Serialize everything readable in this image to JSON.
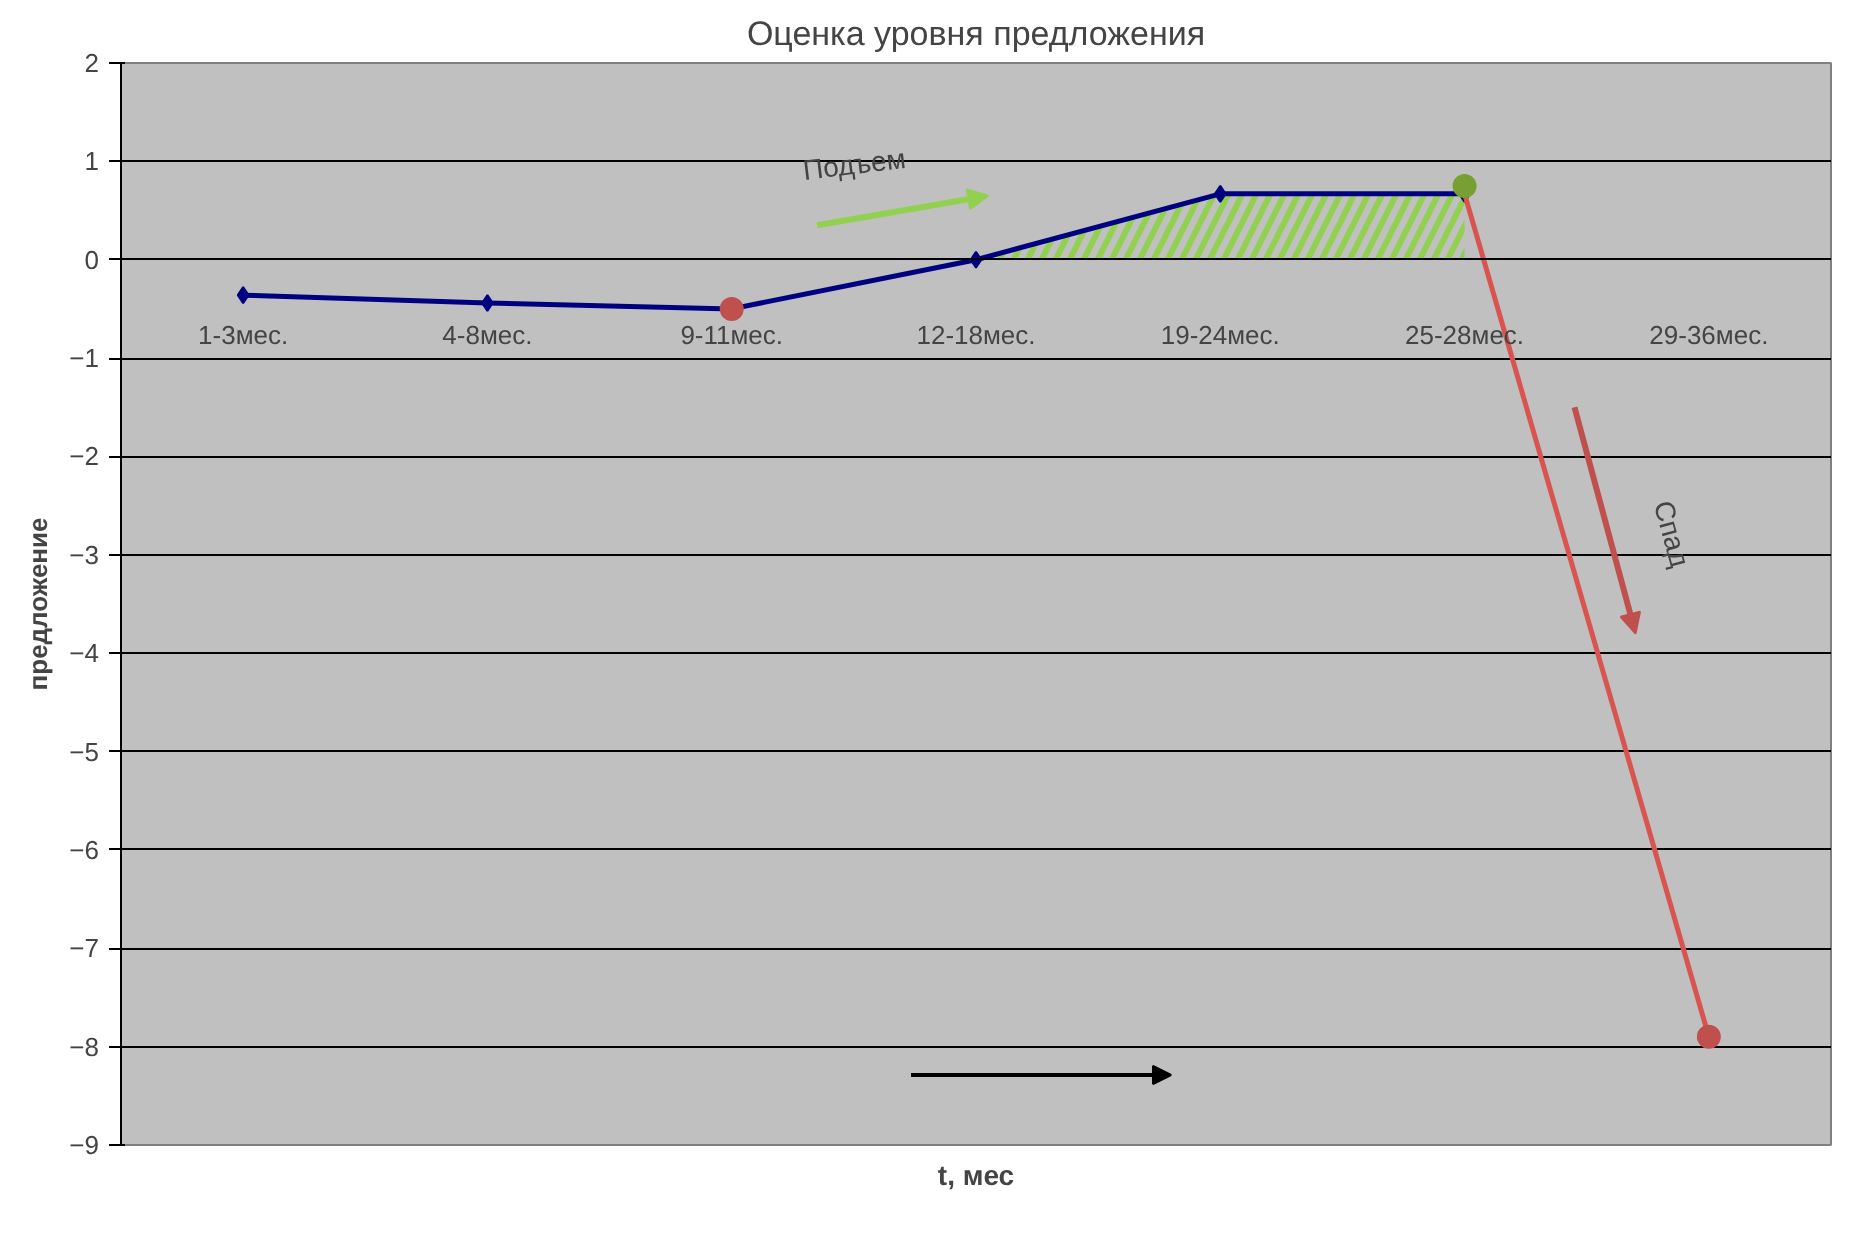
{
  "chart_data": {
    "type": "line",
    "title": "Оценка уровня предложения",
    "xlabel": "t, мес",
    "ylabel": "предложение",
    "categories": [
      "1-3мес.",
      "4-8мес.",
      "9-11мес.",
      "12-18мес.",
      "19-24мес.",
      "25-28мес.",
      "29-36мес."
    ],
    "series": [
      {
        "color": "#000080",
        "marker": "diamond",
        "values": [
          -0.36,
          -0.44,
          -0.5,
          0.0,
          0.67,
          0.67,
          null
        ]
      },
      {
        "color": "#d9534f",
        "marker": "none",
        "values": [
          null,
          null,
          null,
          null,
          null,
          0.67,
          -7.9
        ]
      },
      {
        "type": "scatter",
        "color": "#c0504d",
        "marker": "circle",
        "values": [
          null,
          null,
          -0.5,
          null,
          null,
          null,
          -7.9
        ]
      },
      {
        "type": "scatter",
        "color": "#77a032",
        "marker": "circle",
        "values": [
          null,
          null,
          null,
          null,
          null,
          0.75,
          null
        ]
      },
      {
        "type": "area",
        "color": "#92d050",
        "values": [
          null,
          null,
          null,
          0.0,
          0.67,
          0.67,
          null
        ]
      }
    ],
    "annotations": [
      "Подъем",
      "Спад"
    ],
    "ylim": [
      -9,
      2
    ],
    "yticks": [
      -9,
      -8,
      -7,
      -6,
      -5,
      -4,
      -3,
      -2,
      -1,
      0,
      1,
      2
    ],
    "grid": "y"
  }
}
